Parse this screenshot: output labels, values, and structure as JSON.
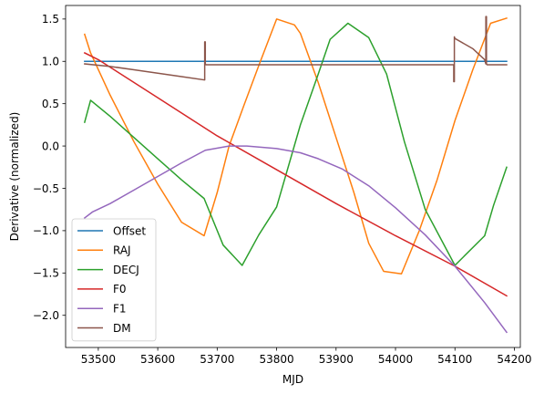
{
  "chart_data": {
    "type": "line",
    "xlabel": "MJD",
    "ylabel": "Derivative (normalized)",
    "xlim": [
      53445,
      54210
    ],
    "ylim": [
      -2.38,
      1.66
    ],
    "xticks": [
      53500,
      53600,
      53700,
      53800,
      53900,
      54000,
      54100,
      54200
    ],
    "xtick_labels": [
      "53500",
      "53600",
      "53700",
      "53800",
      "53900",
      "54000",
      "54100",
      "54200"
    ],
    "yticks": [
      -2.0,
      -1.5,
      -1.0,
      -0.5,
      0.0,
      0.5,
      1.0,
      1.5
    ],
    "ytick_labels": [
      "−2.0",
      "−1.5",
      "−1.0",
      "−0.5",
      "0.0",
      "0.5",
      "1.0",
      "1.5"
    ],
    "grid": false,
    "legend_position": "lower-left",
    "series": [
      {
        "name": "Offset",
        "color": "#1f77b4",
        "x": [
          53477,
          54187
        ],
        "y": [
          1.0,
          1.0
        ]
      },
      {
        "name": "RAJ",
        "color": "#ff7f0e",
        "x": [
          53477,
          53487,
          53520,
          53560,
          53600,
          53640,
          53678,
          53700,
          53720,
          53745,
          53770,
          53800,
          53830,
          53840,
          53870,
          53900,
          53930,
          53955,
          53980,
          54010,
          54040,
          54070,
          54100,
          54130,
          54160,
          54187
        ],
        "y": [
          1.32,
          1.1,
          0.6,
          0.05,
          -0.45,
          -0.9,
          -1.06,
          -0.55,
          0.0,
          0.48,
          0.95,
          1.5,
          1.43,
          1.33,
          0.75,
          0.1,
          -0.55,
          -1.15,
          -1.48,
          -1.51,
          -1.0,
          -0.4,
          0.3,
          0.9,
          1.45,
          1.51
        ]
      },
      {
        "name": "DECJ",
        "color": "#2ca02c",
        "x": [
          53477,
          53487,
          53520,
          53560,
          53600,
          53640,
          53678,
          53710,
          53742,
          53770,
          53800,
          53840,
          53870,
          53890,
          53920,
          53955,
          53985,
          54015,
          54050,
          54100,
          54150,
          54165,
          54187
        ],
        "y": [
          0.28,
          0.54,
          0.35,
          0.1,
          -0.15,
          -0.4,
          -0.62,
          -1.17,
          -1.41,
          -1.05,
          -0.72,
          0.25,
          0.85,
          1.26,
          1.45,
          1.28,
          0.85,
          0.05,
          -0.75,
          -1.41,
          -1.06,
          -0.7,
          -0.25
        ]
      },
      {
        "name": "F0",
        "color": "#d62728",
        "x": [
          53477,
          53500,
          53600,
          53700,
          53800,
          53900,
          54000,
          54100,
          54187
        ],
        "y": [
          1.1,
          1.02,
          0.57,
          0.12,
          -0.28,
          -0.68,
          -1.06,
          -1.42,
          -1.77
        ]
      },
      {
        "name": "F1",
        "color": "#9467bd",
        "x": [
          53477,
          53490,
          53520,
          53560,
          53600,
          53640,
          53680,
          53720,
          53750,
          53800,
          53840,
          53870,
          53910,
          53955,
          54000,
          54050,
          54100,
          54150,
          54187
        ],
        "y": [
          -0.85,
          -0.78,
          -0.68,
          -0.52,
          -0.36,
          -0.2,
          -0.05,
          0.0,
          0.0,
          -0.03,
          -0.08,
          -0.15,
          -0.27,
          -0.47,
          -0.73,
          -1.05,
          -1.42,
          -1.85,
          -2.2
        ]
      },
      {
        "name": "DM",
        "color": "#8c564b",
        "x": [
          53477,
          53520,
          53560,
          53600,
          53640,
          53679,
          53679,
          53680,
          53680,
          53681,
          53700,
          53800,
          53900,
          54000,
          54098,
          54098,
          54099,
          54099,
          54100,
          54130,
          54150,
          54152,
          54152,
          54153,
          54153,
          54154,
          54187
        ],
        "y": [
          0.97,
          0.94,
          0.9,
          0.86,
          0.82,
          0.78,
          1.23,
          1.23,
          0.97,
          0.96,
          0.96,
          0.96,
          0.96,
          0.96,
          0.96,
          0.76,
          0.76,
          1.29,
          1.27,
          1.15,
          1.02,
          0.97,
          1.53,
          1.53,
          0.97,
          0.96,
          0.96
        ]
      }
    ]
  }
}
